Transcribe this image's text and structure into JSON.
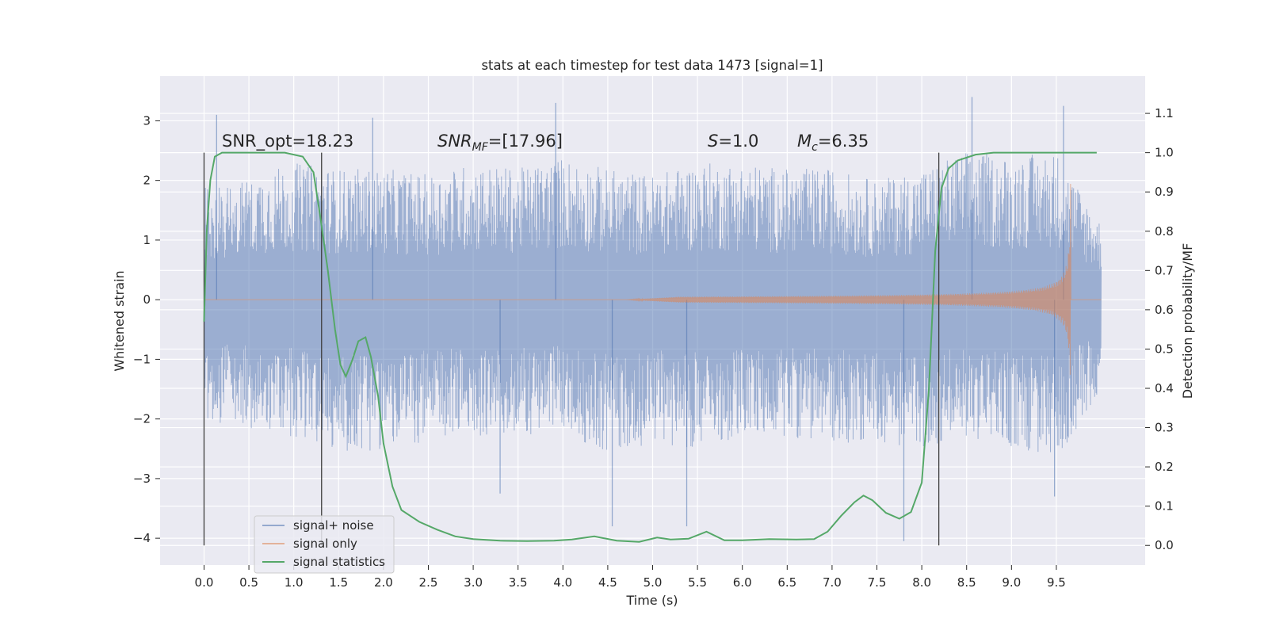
{
  "chart_data": {
    "type": "line",
    "title": "stats at each timestep for test data 1473 [signal=1]",
    "xlabel": "Time (s)",
    "ylabel": "Whitened strain",
    "y2label": "Detection probability/MF",
    "xlim": [
      -0.49,
      10.49
    ],
    "ylim": [
      -4.45,
      3.75
    ],
    "y2lim": [
      -0.05,
      1.195
    ],
    "x_ticks": [
      0.0,
      0.5,
      1.0,
      1.5,
      2.0,
      2.5,
      3.0,
      3.5,
      4.0,
      4.5,
      5.0,
      5.5,
      6.0,
      6.5,
      7.0,
      7.5,
      8.0,
      8.5,
      9.0,
      9.5
    ],
    "x_tick_labels": [
      "0.0",
      "0.5",
      "1.0",
      "1.5",
      "2.0",
      "2.5",
      "3.0",
      "3.5",
      "4.0",
      "4.5",
      "5.0",
      "5.5",
      "6.0",
      "6.5",
      "7.0",
      "7.5",
      "8.0",
      "8.5",
      "9.0",
      "9.5"
    ],
    "y_ticks": [
      3,
      2,
      1,
      0,
      -1,
      -2,
      -3,
      -4
    ],
    "y_tick_labels": [
      "3",
      "2",
      "1",
      "0",
      "−1",
      "−2",
      "−3",
      "−4"
    ],
    "y2_ticks": [
      1.1,
      1.0,
      0.9,
      0.8,
      0.7,
      0.6,
      0.5,
      0.4,
      0.3,
      0.2,
      0.1,
      0.0
    ],
    "y2_tick_labels": [
      "1.1",
      "1.0",
      "0.9",
      "0.8",
      "0.7",
      "0.6",
      "0.5",
      "0.4",
      "0.3",
      "0.2",
      "0.1",
      "0.0"
    ],
    "grid": true,
    "legend_position": "lower-left",
    "annotations": {
      "snr_opt": "SNR_opt=18.23",
      "snr_mf_main": "SNR",
      "snr_mf_sub": "MF",
      "snr_mf_val": "=[17.96]",
      "s_sym": "S",
      "s_val": "=1.0",
      "mc_main": "M",
      "mc_sub": "c",
      "mc_val": "=6.35"
    },
    "vertical_markers": [
      0.0,
      1.31,
      8.19
    ],
    "series": [
      {
        "name": "signal+ noise",
        "color": "#4c72b0",
        "envelope": {
          "x": [
            0.0,
            0.5,
            1.0,
            1.5,
            2.0,
            2.5,
            3.0,
            3.5,
            4.0,
            4.5,
            5.0,
            5.5,
            6.0,
            6.5,
            7.0,
            7.5,
            8.0,
            8.5,
            9.0,
            9.5,
            10.0
          ],
          "upper": [
            1.9,
            2.1,
            2.3,
            2.2,
            2.2,
            2.1,
            2.3,
            2.2,
            2.4,
            2.2,
            2.1,
            2.3,
            2.3,
            2.2,
            2.2,
            2.0,
            2.2,
            2.5,
            2.4,
            2.5,
            1.3
          ],
          "lower": [
            -2.0,
            -2.2,
            -2.3,
            -2.6,
            -2.5,
            -2.4,
            -2.3,
            -2.3,
            -2.2,
            -2.6,
            -2.4,
            -2.5,
            -2.3,
            -2.3,
            -2.4,
            -2.4,
            -2.5,
            -2.3,
            -2.5,
            -2.7,
            -1.5
          ],
          "peaks_x": [
            0.14,
            1.88,
            3.3,
            3.92,
            4.55,
            5.38,
            7.8,
            8.56,
            9.58,
            9.48
          ],
          "peaks_y": [
            3.1,
            3.05,
            -3.25,
            3.3,
            -3.8,
            -3.8,
            -4.05,
            3.4,
            3.25,
            -3.3
          ]
        }
      },
      {
        "name": "signal only",
        "color": "#dd8452",
        "chirp": {
          "start": 4.7,
          "end": 9.66,
          "peak_amplitude": 2.0
        }
      },
      {
        "name": "signal statistics",
        "color": "#55a868",
        "x": [
          0.0,
          0.03,
          0.07,
          0.12,
          0.2,
          0.35,
          0.6,
          0.9,
          1.1,
          1.22,
          1.3,
          1.38,
          1.46,
          1.52,
          1.58,
          1.65,
          1.72,
          1.8,
          1.86,
          1.94,
          2.0,
          2.1,
          2.2,
          2.4,
          2.6,
          2.8,
          3.0,
          3.3,
          3.6,
          3.9,
          4.1,
          4.35,
          4.6,
          4.85,
          5.05,
          5.2,
          5.4,
          5.6,
          5.8,
          6.0,
          6.3,
          6.6,
          6.8,
          6.95,
          7.1,
          7.25,
          7.35,
          7.45,
          7.6,
          7.75,
          7.88,
          8.0,
          8.08,
          8.15,
          8.22,
          8.3,
          8.4,
          8.6,
          8.8,
          9.0,
          9.5,
          9.95
        ],
        "y": [
          0.57,
          0.8,
          0.93,
          0.99,
          1.0,
          1.0,
          1.0,
          1.0,
          0.99,
          0.95,
          0.83,
          0.7,
          0.55,
          0.46,
          0.43,
          0.47,
          0.52,
          0.53,
          0.48,
          0.38,
          0.26,
          0.15,
          0.09,
          0.06,
          0.04,
          0.023,
          0.016,
          0.012,
          0.011,
          0.012,
          0.015,
          0.023,
          0.012,
          0.009,
          0.02,
          0.015,
          0.017,
          0.035,
          0.013,
          0.013,
          0.016,
          0.015,
          0.016,
          0.035,
          0.075,
          0.11,
          0.127,
          0.115,
          0.083,
          0.068,
          0.085,
          0.16,
          0.4,
          0.75,
          0.91,
          0.96,
          0.98,
          0.995,
          1.0,
          1.0,
          1.0,
          1.0
        ]
      }
    ]
  }
}
